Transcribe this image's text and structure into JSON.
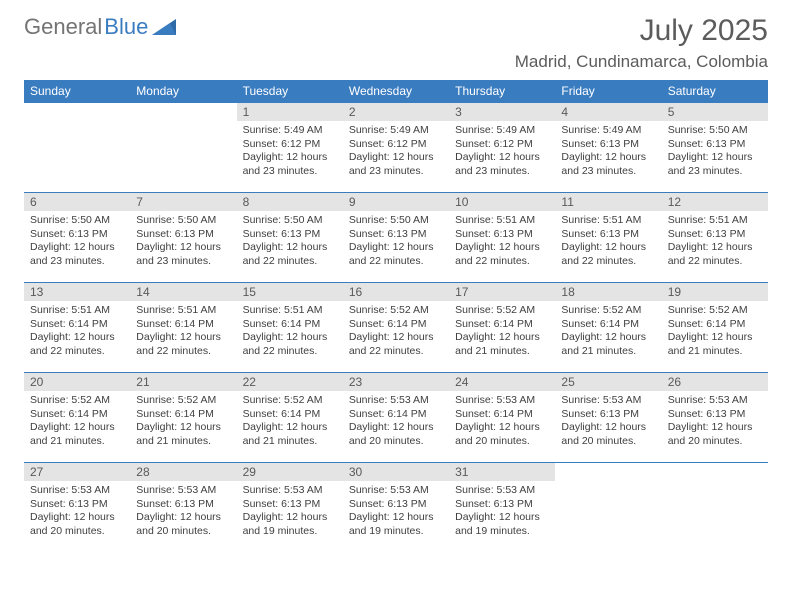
{
  "brand": {
    "word1": "General",
    "word2": "Blue"
  },
  "title": "July 2025",
  "location": "Madrid, Cundinamarca, Colombia",
  "colors": {
    "header_bg": "#3a7cc0",
    "header_fg": "#ffffff",
    "daynum_bg": "#e4e4e4",
    "cell_border": "#3a7cc0",
    "text": "#3f3f3f",
    "title_color": "#5c5c5c"
  },
  "weekdays": [
    "Sunday",
    "Monday",
    "Tuesday",
    "Wednesday",
    "Thursday",
    "Friday",
    "Saturday"
  ],
  "weeks": [
    [
      {
        "day": ""
      },
      {
        "day": ""
      },
      {
        "day": "1",
        "sunrise": "5:49 AM",
        "sunset": "6:12 PM",
        "daylight": "12 hours and 23 minutes."
      },
      {
        "day": "2",
        "sunrise": "5:49 AM",
        "sunset": "6:12 PM",
        "daylight": "12 hours and 23 minutes."
      },
      {
        "day": "3",
        "sunrise": "5:49 AM",
        "sunset": "6:12 PM",
        "daylight": "12 hours and 23 minutes."
      },
      {
        "day": "4",
        "sunrise": "5:49 AM",
        "sunset": "6:13 PM",
        "daylight": "12 hours and 23 minutes."
      },
      {
        "day": "5",
        "sunrise": "5:50 AM",
        "sunset": "6:13 PM",
        "daylight": "12 hours and 23 minutes."
      }
    ],
    [
      {
        "day": "6",
        "sunrise": "5:50 AM",
        "sunset": "6:13 PM",
        "daylight": "12 hours and 23 minutes."
      },
      {
        "day": "7",
        "sunrise": "5:50 AM",
        "sunset": "6:13 PM",
        "daylight": "12 hours and 23 minutes."
      },
      {
        "day": "8",
        "sunrise": "5:50 AM",
        "sunset": "6:13 PM",
        "daylight": "12 hours and 22 minutes."
      },
      {
        "day": "9",
        "sunrise": "5:50 AM",
        "sunset": "6:13 PM",
        "daylight": "12 hours and 22 minutes."
      },
      {
        "day": "10",
        "sunrise": "5:51 AM",
        "sunset": "6:13 PM",
        "daylight": "12 hours and 22 minutes."
      },
      {
        "day": "11",
        "sunrise": "5:51 AM",
        "sunset": "6:13 PM",
        "daylight": "12 hours and 22 minutes."
      },
      {
        "day": "12",
        "sunrise": "5:51 AM",
        "sunset": "6:13 PM",
        "daylight": "12 hours and 22 minutes."
      }
    ],
    [
      {
        "day": "13",
        "sunrise": "5:51 AM",
        "sunset": "6:14 PM",
        "daylight": "12 hours and 22 minutes."
      },
      {
        "day": "14",
        "sunrise": "5:51 AM",
        "sunset": "6:14 PM",
        "daylight": "12 hours and 22 minutes."
      },
      {
        "day": "15",
        "sunrise": "5:51 AM",
        "sunset": "6:14 PM",
        "daylight": "12 hours and 22 minutes."
      },
      {
        "day": "16",
        "sunrise": "5:52 AM",
        "sunset": "6:14 PM",
        "daylight": "12 hours and 22 minutes."
      },
      {
        "day": "17",
        "sunrise": "5:52 AM",
        "sunset": "6:14 PM",
        "daylight": "12 hours and 21 minutes."
      },
      {
        "day": "18",
        "sunrise": "5:52 AM",
        "sunset": "6:14 PM",
        "daylight": "12 hours and 21 minutes."
      },
      {
        "day": "19",
        "sunrise": "5:52 AM",
        "sunset": "6:14 PM",
        "daylight": "12 hours and 21 minutes."
      }
    ],
    [
      {
        "day": "20",
        "sunrise": "5:52 AM",
        "sunset": "6:14 PM",
        "daylight": "12 hours and 21 minutes."
      },
      {
        "day": "21",
        "sunrise": "5:52 AM",
        "sunset": "6:14 PM",
        "daylight": "12 hours and 21 minutes."
      },
      {
        "day": "22",
        "sunrise": "5:52 AM",
        "sunset": "6:14 PM",
        "daylight": "12 hours and 21 minutes."
      },
      {
        "day": "23",
        "sunrise": "5:53 AM",
        "sunset": "6:14 PM",
        "daylight": "12 hours and 20 minutes."
      },
      {
        "day": "24",
        "sunrise": "5:53 AM",
        "sunset": "6:14 PM",
        "daylight": "12 hours and 20 minutes."
      },
      {
        "day": "25",
        "sunrise": "5:53 AM",
        "sunset": "6:13 PM",
        "daylight": "12 hours and 20 minutes."
      },
      {
        "day": "26",
        "sunrise": "5:53 AM",
        "sunset": "6:13 PM",
        "daylight": "12 hours and 20 minutes."
      }
    ],
    [
      {
        "day": "27",
        "sunrise": "5:53 AM",
        "sunset": "6:13 PM",
        "daylight": "12 hours and 20 minutes."
      },
      {
        "day": "28",
        "sunrise": "5:53 AM",
        "sunset": "6:13 PM",
        "daylight": "12 hours and 20 minutes."
      },
      {
        "day": "29",
        "sunrise": "5:53 AM",
        "sunset": "6:13 PM",
        "daylight": "12 hours and 19 minutes."
      },
      {
        "day": "30",
        "sunrise": "5:53 AM",
        "sunset": "6:13 PM",
        "daylight": "12 hours and 19 minutes."
      },
      {
        "day": "31",
        "sunrise": "5:53 AM",
        "sunset": "6:13 PM",
        "daylight": "12 hours and 19 minutes."
      },
      {
        "day": ""
      },
      {
        "day": ""
      }
    ]
  ],
  "labels": {
    "sunrise": "Sunrise:",
    "sunset": "Sunset:",
    "daylight": "Daylight:"
  }
}
